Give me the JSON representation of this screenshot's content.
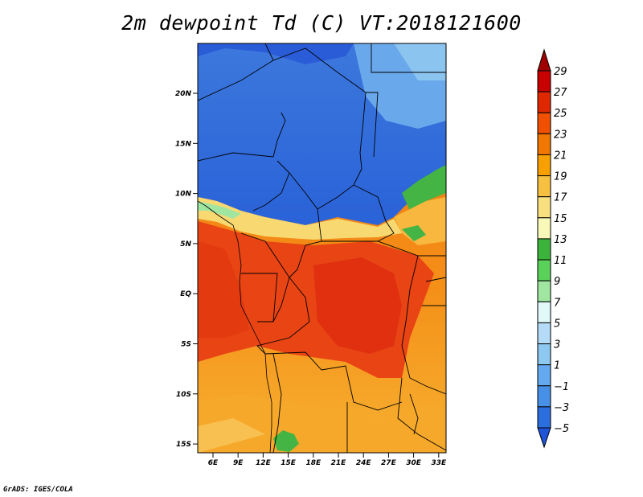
{
  "title": "2m dewpoint Td (C) VT:2018121600",
  "credit": "GrADS: IGES/COLA",
  "map": {
    "lat_labels": [
      "20N",
      "15N",
      "10N",
      "5N",
      "EQ",
      "5S",
      "10S",
      "15S"
    ],
    "lon_labels": [
      "6E",
      "9E",
      "12E",
      "15E",
      "18E",
      "21E",
      "24E",
      "27E",
      "30E",
      "33E"
    ]
  },
  "colorbar": {
    "labels": [
      "29",
      "27",
      "25",
      "23",
      "21",
      "19",
      "17",
      "15",
      "13",
      "11",
      "9",
      "7",
      "5",
      "3",
      "1",
      "−1",
      "−3",
      "−5"
    ],
    "colors": [
      "#a00000",
      "#c80000",
      "#e02800",
      "#f05000",
      "#f07800",
      "#f8a000",
      "#f8c040",
      "#f8e080",
      "#f8f8b8",
      "#3cb43c",
      "#5ad25a",
      "#a0e6a0",
      "#e0f8f8",
      "#b4dcf8",
      "#8cc8f0",
      "#64a8f0",
      "#4690e8",
      "#2a6ee0",
      "#1e54d8"
    ]
  }
}
